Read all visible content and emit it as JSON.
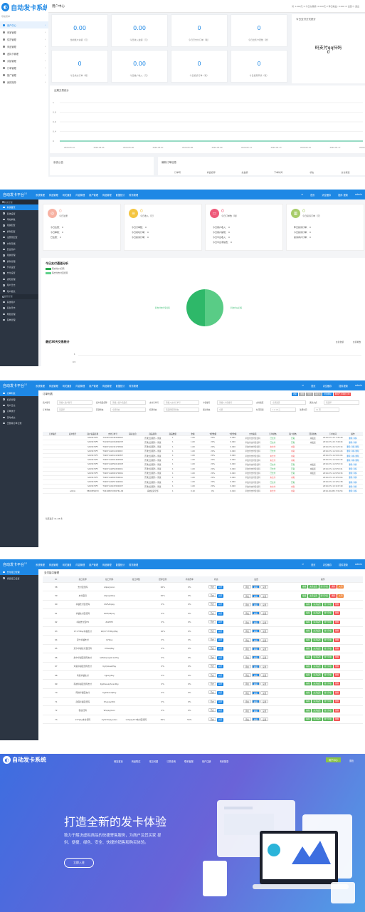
{
  "p1": {
    "logo": "自动发卡系统",
    "nav_label": "导航菜单",
    "nav": [
      "用户中心",
      "商家管理",
      "供货管理",
      "商品管理",
      "虚拟卡管理",
      "对接管理",
      "订单管理",
      "推广管理",
      "我的账单"
    ],
    "top_title": "用户中心",
    "top_right": "对 :1000元 ¥ 今日交易额: 0.000元 ¥ 昨日收益: 0.000 ✉ 设置 ⏻ 退出",
    "cards": [
      {
        "value": "0.00",
        "label": "当前账户余额（元）"
      },
      {
        "value": "0.00",
        "label": "今日收入金额（元）"
      },
      {
        "value": "0",
        "label": "今日已支付订单（笔）"
      },
      {
        "value": "0",
        "label": "今日出售卡密数（张）"
      },
      {
        "value": "0",
        "label": "今日成交订单（笔）"
      },
      {
        "value": "0.00",
        "label": "今日推广收入（元）"
      },
      {
        "value": "0",
        "label": "今日投诉订单（笔）"
      },
      {
        "value": "0",
        "label": "今日提现申请（笔）"
      }
    ],
    "qr_title": "今日支付方式统计",
    "qr_text": "码支付qq扫码",
    "qr_value": "0",
    "chart_title": "近期交易统计",
    "chart_y": [
      "1",
      "0.8",
      "0.6",
      "0.4",
      "0"
    ],
    "chart_x": [
      "2020-05-10",
      "2020-05-05",
      "2020-05-06",
      "2020-05-07",
      "2020-05-08",
      "2020-05-09",
      "2020-05-11",
      "2020-05-13",
      "2020-05-15",
      "2020-05-17",
      "2020-05-19"
    ],
    "notice_title": "系统公告",
    "orders_title": "最新订单信息",
    "orders_cols": [
      "订单号",
      "商品名称",
      "总金额",
      "下单时间",
      "状态",
      "支付渠道"
    ]
  },
  "p2": {
    "brand": "自动发卡平台",
    "version": "2.0",
    "menus": [
      "系统管理",
      "商品管理",
      "网关通道",
      "内容管理",
      "用户管理",
      "商品管理",
      "数据统计",
      "财务管理"
    ],
    "right": [
      "首页",
      "清空缓存",
      "插件 更新",
      "admin"
    ],
    "nav": [
      {
        "t": "系统管理",
        "sec": true
      },
      {
        "t": "系统首页",
        "on": true
      },
      {
        "t": "系统设置"
      },
      {
        "t": "网站参数"
      },
      {
        "t": "短信配置"
      },
      {
        "t": "邮件配置"
      },
      {
        "t": "注册页配置"
      },
      {
        "t": "文件存储"
      },
      {
        "t": "安全防护"
      },
      {
        "t": "短信管理"
      },
      {
        "t": "邮件管理"
      },
      {
        "t": "节点设置"
      },
      {
        "t": "支付设置"
      },
      {
        "t": "通知管理"
      },
      {
        "t": "用户日志"
      },
      {
        "t": "用户报表"
      },
      {
        "t": "权限管理",
        "sec": true
      },
      {
        "t": "系统用户"
      },
      {
        "t": "后台日志"
      },
      {
        "t": "角色管理"
      },
      {
        "t": "菜单管理"
      }
    ],
    "stats": [
      {
        "color": "#f7b2a3",
        "icon": "◎",
        "big": "0",
        "sub": "今日注册",
        "rows": [
          "今日注册： 0",
          "今日审核： 0",
          "已注册： 0"
        ]
      },
      {
        "color": "#f4c542",
        "icon": "≡",
        "big": "0",
        "sub": "今日收入（元）",
        "rows": [
          "今日订单数： 0",
          "今日成功订单： 0",
          "今日投诉订单： 0"
        ]
      },
      {
        "color": "#ee5a7a",
        "icon": "▭",
        "big": "0",
        "sub": "今日订单数（笔）",
        "rows": [
          "今日用户收入： 0",
          "今日用户提现： 0",
          "今日平台收入： 0",
          "今日平台手续费： 0"
        ]
      },
      {
        "color": "#a8cc6a",
        "icon": "▥",
        "big": "0",
        "sub": "今日投诉订单（元）",
        "rows": [
          "昨日投诉订单： 0",
          "今日投诉订单： 0",
          "投诉商户订单： 0"
        ]
      }
    ],
    "pie_title": "今日支付通道分析",
    "pie_subtitle": "2020-05-xx",
    "pie_legend": [
      "码支付qq扫码",
      "码支付支付宝扫码"
    ],
    "pie_labels": [
      "码支付支付宝扫码",
      "码支付qq扫码"
    ],
    "line_title": "最近30天交易统计",
    "line_legend": [
      "交易金额",
      "交易笔数"
    ],
    "line_y": [
      "1",
      "0.5"
    ]
  },
  "p3": {
    "menus": [
      "系统管理",
      "商品管理",
      "网关通道",
      "内容管理",
      "用户管理",
      "商品管理",
      "数据统计",
      "财务管理"
    ],
    "right": [
      "首页",
      "清空缓存",
      "插件更新",
      "admin"
    ],
    "nav": [
      {
        "t": "订单列表",
        "on": true
      },
      {
        "t": "投诉管理"
      },
      {
        "t": "用户日志"
      },
      {
        "t": "订单统计"
      },
      {
        "t": "实时成交"
      },
      {
        "t": "已删除订单记录"
      }
    ],
    "title": "订单列表",
    "buttons": [
      {
        "t": "搜索",
        "c": "#1e88e5"
      },
      {
        "t": "重置",
        "c": "#aaa"
      },
      {
        "t": "导出",
        "c": "#aaa"
      },
      {
        "t": "自定义",
        "c": "#aaa"
      },
      {
        "t": "批量删除",
        "c": "#1e88e5"
      },
      {
        "t": "删除已过期的订单",
        "c": "#f05050"
      }
    ],
    "filters": [
      [
        "商户账号",
        "请输入商户账号"
      ],
      [
        "商户商品名称",
        "请输入商户商品名"
      ],
      [
        "支付订单号",
        "请输入支付订单号"
      ],
      [
        "卡密编号",
        "请输入卡密编号"
      ],
      [
        "支付渠道",
        "全部渠道"
      ],
      [
        "通过方式",
        "请选择"
      ],
      [
        "订单状态",
        "请选择"
      ],
      [
        "回调状态",
        "全部状态"
      ],
      [
        "结算状态",
        "请选择结算状态"
      ],
      [
        "通过状态",
        "全部"
      ],
      [
        "时间范围",
        "11-18 元"
      ],
      [
        "注册时间",
        "11 周"
      ]
    ],
    "cols": [
      "订单编号",
      "商户账号",
      "商户商品名称",
      "支付订单号",
      "联系信息",
      "商品名称",
      "商品数量",
      "金额",
      "卡密数量",
      "卡密金额",
      "支付渠道",
      "订单状态",
      "取卡状态",
      "回调状态",
      "下单时间",
      "操作"
    ],
    "rows": [
      [
        "",
        "",
        "3A03470F5",
        "T119071214450000013",
        "",
        "开通会员服务...测试",
        "1",
        "1.00",
        "20%",
        "0.020",
        "码支付支付宝扫码",
        "已支付",
        "已取",
        "未发送",
        "2019-07-12 17:44:49",
        "删除 详情"
      ],
      [
        "",
        "",
        "3A03470F5",
        "T119071211843023555",
        "",
        "开通会员服务...测试",
        "1",
        "1.00",
        "20%",
        "0.020",
        "码支付支付宝扫码",
        "已支付",
        "已取",
        "未发送",
        "2019-07-12 17:40:44",
        "删除 详情"
      ],
      [
        "",
        "",
        "3A03470F5",
        "T19071212321705940",
        "",
        "开通会员服务...测试",
        "1",
        "1.00",
        "20%",
        "0.020",
        "码支付支付宝扫码",
        "未支付",
        "未取",
        "",
        "2019-07-12 21:23:14",
        "删除 详情 删除"
      ],
      [
        "",
        "",
        "3A03470F5",
        "T190711221102000172",
        "",
        "开通会员服务...测试",
        "1",
        "1.00",
        "20%",
        "0.020",
        "码支付支付宝扫码",
        "已支付",
        "未取",
        "",
        "2019-07-11 22:01:24",
        "删除 详情 删除"
      ],
      [
        "",
        "",
        "3A03470F5",
        "T19071122101320879",
        "",
        "开通会员服务...测试",
        "1",
        "1.00",
        "20%",
        "0.020",
        "码支付支付宝扫码",
        "未支付",
        "未取",
        "",
        "2019-07-11 22:01:04",
        "删除 详情 删除"
      ],
      [
        "",
        "",
        "3A03470F5",
        "T19071122014005920",
        "",
        "开通会员服务...测试",
        "1",
        "1.00",
        "20%",
        "0.020",
        "码支付支付宝扫码",
        "未支付",
        "未取",
        "",
        "2019-07-11 22:01:44",
        "删除 详情 删除"
      ],
      [
        "",
        "",
        "3A03470F5",
        "T190711205401200051",
        "",
        "开通会员服务...测试",
        "1",
        "1.00",
        "20%",
        "0.020",
        "码支付支付宝扫码",
        "已支付",
        "已取",
        "未发送",
        "2019-07-11 20:53:14",
        "删除 详情"
      ],
      [
        "",
        "",
        "3A03470F5",
        "T19071120502500014",
        "",
        "开通会员服务...测试",
        "1",
        "1.00",
        "20%",
        "0.020",
        "码支付支付宝扫码",
        "已支付",
        "已取",
        "未发送",
        "2019-07-11 20:55:41",
        "删除 详情"
      ],
      [
        "",
        "",
        "3A03470F5",
        "T190711200917000422",
        "",
        "开通会员服务...测试",
        "1",
        "1.00",
        "20%",
        "0.020",
        "码支付支付宝扫码",
        "已支付",
        "已取",
        "未发送",
        "2019-07-11 20:50:34",
        "删除 详情"
      ],
      [
        "",
        "",
        "3A03470F5",
        "T19071120007000412",
        "",
        "开通会员服务...测试",
        "1",
        "1.00",
        "20%",
        "0.020",
        "码支付支付宝扫码",
        "未支付",
        "未取",
        "",
        "2019-07-11 19:53:04",
        "删除 详情"
      ],
      [
        "",
        "",
        "3A03470F5",
        "T19071119571620044",
        "",
        "开通会员服务...测试",
        "1",
        "1.00",
        "20%",
        "0.020",
        "码支付支付宝扫码",
        "已支付",
        "已取",
        "",
        "2019-07-11 19:51:38",
        "删除 详情"
      ],
      [
        "",
        "",
        "3A03470F5",
        "T19071119470002079",
        "",
        "开通会员服务...测试",
        "1",
        "1.00",
        "20%",
        "0.020",
        "码支付支付宝扫码",
        "未支付",
        "未取",
        "",
        "2019-07-11 19:47:40",
        "删除 详情"
      ],
      [
        "",
        "admin",
        "58003E0A53",
        "T16108071930761-90",
        "",
        "系统发货全部",
        "1",
        "0.10",
        "0%",
        "0.010",
        "码支付支付宝扫码",
        "未支付",
        "未取",
        "",
        "2019-10-08 17:34:54",
        "删除 详情"
      ]
    ],
    "footer": "每页显示 11-18 条"
  },
  "p4": {
    "menus": [
      "系统管理",
      "商品管理",
      "网关通道",
      "内容管理",
      "用户管理",
      "商品管理",
      "数据统计",
      "财务管理"
    ],
    "right": [
      "首页",
      "清空缓存",
      "插件更新",
      "admin"
    ],
    "nav": [
      {
        "t": "支付接口管理",
        "on": true
      },
      {
        "t": "通道接口设置"
      }
    ],
    "title": "支付接口管理",
    "cols": [
      "ID",
      "接口名称",
      "接口代码",
      "接口参数",
      "结算比例",
      "手续费率",
      "状态",
      "设置",
      "操作"
    ],
    "rows": [
      [
        "58",
        "支付宝扫码",
        "Alipay\\Lion",
        "",
        "20%",
        "0%",
        "开通",
        "",
        "",
        "",
        true
      ],
      [
        "59",
        "支付宝扫",
        "Alipay\\Wap",
        "",
        "20%",
        "0%",
        "开通",
        "",
        "",
        "",
        true
      ],
      [
        "60",
        "卓越支付宝扫码",
        "Zlzf\\Alipay",
        "",
        "0%",
        "0%",
        "开通",
        "",
        "",
        "",
        false
      ],
      [
        "61",
        "卓越支付宝扫码",
        "Zzzf\\Alipay",
        "",
        "0%",
        "0%",
        "开通",
        "",
        "",
        "",
        false
      ],
      [
        "62",
        "卓越支付宝H5",
        "Zzzf\\H5",
        "",
        "0%",
        "0%",
        "开通",
        "",
        "",
        "",
        false
      ],
      [
        "63",
        "17173Pay卓越支付",
        "Zz\\17173Pay\\Pay",
        "",
        "10%",
        "0%",
        "开通",
        "",
        "",
        "",
        false
      ],
      [
        "64",
        "双卡卓越支付",
        "Qr\\Pay",
        "",
        "0%",
        "0%",
        "开通",
        "",
        "",
        "",
        false
      ],
      [
        "65",
        "双卡卓越支付宝扫码",
        "Uhlsa\\Pay",
        "",
        "0%",
        "0%",
        "开通",
        "",
        "",
        "",
        false
      ],
      [
        "66",
        "航卡卓越宝扫码支付",
        "Qzf\\Qrpay\\ScanPay",
        "",
        "0%",
        "0%",
        "开通",
        "",
        "",
        "",
        false
      ],
      [
        "67",
        "鸡蛋卓越宝扫码支付",
        "KyQrslaw\\Pay",
        "",
        "0%",
        "0%",
        "开通",
        "",
        "",
        "",
        false
      ],
      [
        "68",
        "鸡蛋卓越支付",
        "Kjpay\\Pay",
        "",
        "0%",
        "0%",
        "开通",
        "",
        "",
        "",
        false
      ],
      [
        "69",
        "码蜂卓越宝扫码支付",
        "KjpDaauiqScanPay",
        "",
        "0%",
        "0%",
        "开通",
        "",
        "",
        "",
        false
      ],
      [
        "70",
        "码蜂卓越宝支付",
        "KjpDaauiqPay",
        "",
        "0%",
        "0%",
        "开通",
        "",
        "",
        "",
        false
      ],
      [
        "71",
        "商保卓越宝扫码",
        "Shopay\\Wb",
        "",
        "0%",
        "0%",
        "开通",
        "",
        "",
        "",
        false
      ],
      [
        "72",
        "微信扫码",
        "Wxpay\\Lion",
        "",
        "0%",
        "0%",
        "开通",
        "",
        "",
        "",
        false
      ],
      [
        "73",
        "137pay支付扫码",
        "Xyt137pay\\ulen",
        "1.0\\pay137支付宝扫码",
        "50%",
        "50%",
        "开通",
        "",
        "",
        "",
        false
      ]
    ],
    "ops": [
      {
        "t": "编辑",
        "c": "#5cb85c"
      },
      {
        "t": "渠道设置",
        "c": "#5cb85c"
      },
      {
        "t": "账号列表",
        "c": "#5cb85c"
      },
      {
        "t": "删除",
        "c": "#f05050"
      },
      {
        "t": "关闭",
        "c": "#f0883e"
      }
    ],
    "cell_btns": [
      "开启",
      "关闭",
      "添加",
      "编辑",
      "设置"
    ]
  },
  "p5": {
    "logo": "自动发卡系统",
    "nav": [
      "网站首页",
      "商品购买",
      "常见问题",
      "订单查询",
      "联系客服",
      "用户注册",
      "商家登录"
    ],
    "user_btn": "用户中心",
    "login": "退出",
    "headline": "打造全新的发卡体验",
    "desc1": "致力于解决虚拟商品的快捷寄售服务，为商户及其买家 提",
    "desc2": "供、便捷、绿色、安全、快捷的销售和购买体验。",
    "cta": "立即入驻"
  }
}
